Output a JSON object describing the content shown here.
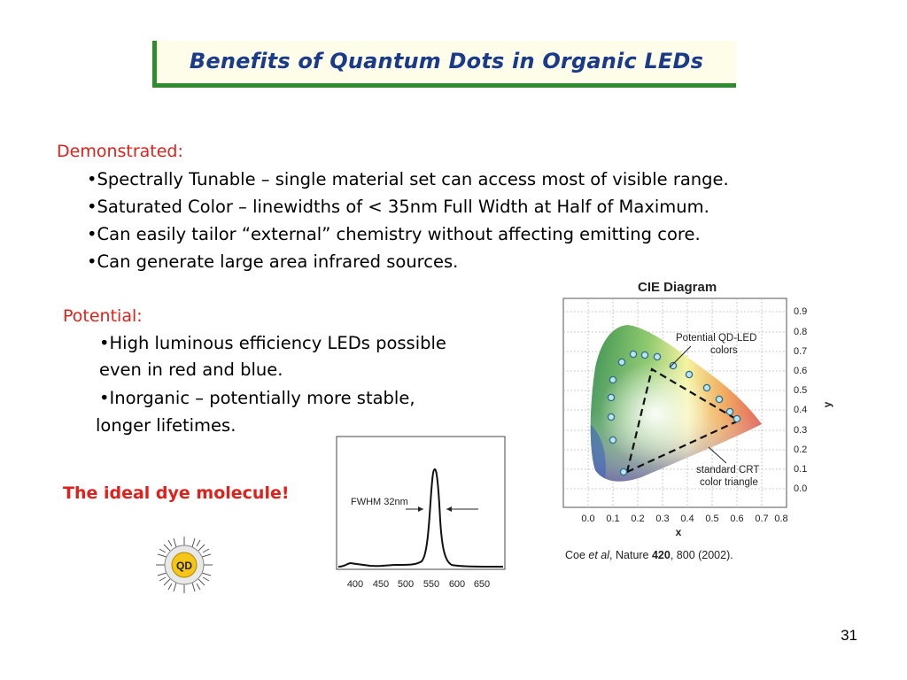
{
  "slide": {
    "title": "Benefits of Quantum Dots in Organic LEDs",
    "page_number": "31"
  },
  "demonstrated": {
    "heading": "Demonstrated:",
    "bullets": [
      "•Spectrally Tunable – single material set can access most of visible range.",
      "•Saturated Color – linewidths of < 35nm Full Width at Half of Maximum.",
      "•Can easily tailor “external” chemistry without affecting emitting core.",
      "•Can generate large area infrared sources."
    ]
  },
  "potential": {
    "heading": "Potential:",
    "lines": [
      "•High luminous efficiency LEDs possible",
      "even in red and blue.",
      "•Inorganic – potentially more stable,",
      "longer lifetimes."
    ]
  },
  "ideal_text": "The ideal dye molecule!",
  "qd_icon": {
    "label": "QD",
    "color": "#f5c518"
  },
  "spectrum_figure": {
    "annotation": "FWHM 32nm",
    "x_ticks": [
      "400",
      "450",
      "500",
      "550",
      "600",
      "650"
    ]
  },
  "cie_figure": {
    "title": "CIE Diagram",
    "x_label": "x",
    "y_label": "y",
    "x_ticks": [
      "0.0",
      "0.1",
      "0.2",
      "0.3",
      "0.4",
      "0.5",
      "0.6",
      "0.7",
      "0.8"
    ],
    "y_ticks": [
      "0.9",
      "0.8",
      "0.7",
      "0.6",
      "0.5",
      "0.4",
      "0.3",
      "0.2",
      "0.1",
      "0.0"
    ],
    "label_qd_line1": "Potential QD-LED",
    "label_qd_line2": "colors",
    "label_crt_line1": "standard CRT",
    "label_crt_line2": "color triangle",
    "citation_pre": "Coe ",
    "citation_italic": "et al",
    "citation_mid": ", Nature ",
    "citation_bold": "420",
    "citation_post": ", 800 (2002)."
  }
}
